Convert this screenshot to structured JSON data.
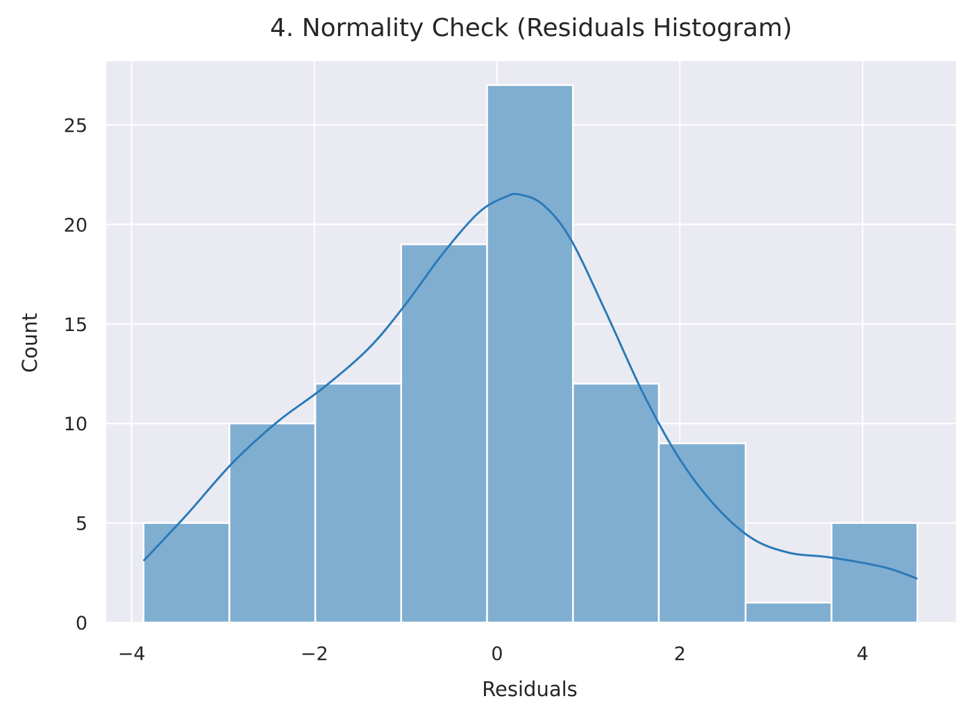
{
  "chart_data": {
    "type": "bar",
    "subtype": "histogram_with_kde",
    "title": "4. Normality Check (Residuals Histogram)",
    "xlabel": "Residuals",
    "ylabel": "Count",
    "xlim": [
      -4.14,
      5.16
    ],
    "ylim": [
      0,
      28.2
    ],
    "xticks": [
      -4,
      -2,
      0,
      2,
      4
    ],
    "xtick_labels": [
      "−4",
      "−2",
      "0",
      "2",
      "4"
    ],
    "yticks": [
      0,
      5,
      10,
      15,
      20,
      25
    ],
    "ytick_labels": [
      "0",
      "5",
      "10",
      "15",
      "20",
      "25"
    ],
    "grid": true,
    "style": "seaborn-darkgrid",
    "bin_edges": [
      -3.87,
      -2.93,
      -1.99,
      -1.05,
      -0.11,
      0.83,
      1.77,
      2.72,
      3.66,
      4.6
    ],
    "categories": [
      "-3.87 to -2.93",
      "-2.93 to -1.99",
      "-1.99 to -1.05",
      "-1.05 to -0.11",
      "-0.11 to 0.83",
      "0.83 to 1.77",
      "1.77 to 2.72",
      "2.72 to 3.66",
      "3.66 to 4.60"
    ],
    "values": [
      5,
      10,
      12,
      19,
      27,
      12,
      9,
      1,
      5
    ],
    "kde": {
      "x": [
        -3.87,
        -3.4,
        -2.9,
        -2.4,
        -1.9,
        -1.4,
        -1.0,
        -0.6,
        -0.2,
        0.1,
        0.25,
        0.5,
        0.8,
        1.2,
        1.6,
        2.0,
        2.4,
        2.8,
        3.2,
        3.6,
        4.0,
        4.3,
        4.6
      ],
      "y": [
        3.1,
        5.4,
        8.0,
        10.1,
        11.8,
        13.8,
        16.0,
        18.5,
        20.6,
        21.4,
        21.5,
        21.0,
        19.3,
        15.5,
        11.5,
        8.2,
        5.8,
        4.2,
        3.5,
        3.3,
        3.0,
        2.7,
        2.2
      ]
    },
    "colors": {
      "bar_fill": "#80aed1",
      "bar_edge": "#ffffff",
      "kde_line": "#2a7ab8",
      "plot_background": "#eaeaf2",
      "grid": "#ffffff"
    }
  }
}
